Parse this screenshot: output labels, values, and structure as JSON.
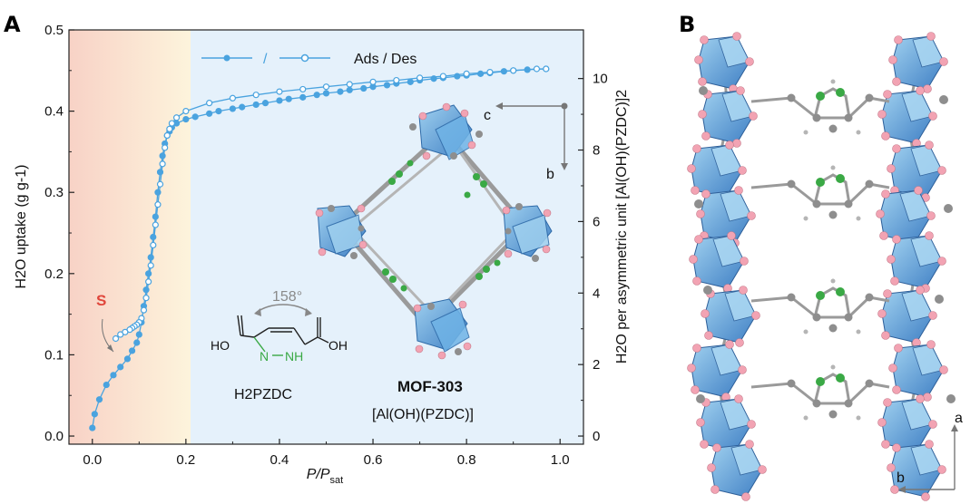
{
  "panels": {
    "a": "A",
    "b": "B"
  },
  "chart_data": {
    "type": "line",
    "xlabel_main": "P/P",
    "xlabel_sub": "sat",
    "ylabel_left": "H2O uptake (g g-1)",
    "ylabel_right": "H2O per asymmetric unit [Al(OH)(PZDC)]2",
    "xlim": [
      -0.05,
      1.05
    ],
    "ylim": [
      -0.01,
      0.5
    ],
    "y2lim": [
      -0.227,
      11.36
    ],
    "xticks": [
      "0.0",
      "0.2",
      "0.4",
      "0.6",
      "0.8",
      "1.0"
    ],
    "xtick_values": [
      0.0,
      0.2,
      0.4,
      0.6,
      0.8,
      1.0
    ],
    "yticks": [
      "0.0",
      "0.1",
      "0.2",
      "0.3",
      "0.4",
      "0.5"
    ],
    "ytick_values": [
      0.0,
      0.1,
      0.2,
      0.3,
      0.4,
      0.5
    ],
    "y2ticks": [
      "0",
      "2",
      "4",
      "6",
      "8",
      "10"
    ],
    "y2tick_values": [
      0,
      2,
      4,
      6,
      8,
      10
    ],
    "legend": {
      "slash": "/",
      "text": "Ads / Des",
      "placement": "top-center"
    },
    "regions": [
      {
        "x0": -0.05,
        "x1": 0.21,
        "color": "#f9d7c8",
        "to_color": "#fdf3dc"
      },
      {
        "x0": 0.21,
        "x1": 1.05,
        "color": "#e5f1fb"
      }
    ],
    "series": [
      {
        "marker": "filled",
        "color": "#4aa3df",
        "x": [
          0.0,
          0.005,
          0.015,
          0.03,
          0.045,
          0.06,
          0.075,
          0.085,
          0.095,
          0.1,
          0.105,
          0.11,
          0.115,
          0.12,
          0.125,
          0.13,
          0.135,
          0.14,
          0.145,
          0.15,
          0.155,
          0.16,
          0.165,
          0.17,
          0.18,
          0.2,
          0.22,
          0.25,
          0.27,
          0.3,
          0.32,
          0.35,
          0.37,
          0.4,
          0.42,
          0.45,
          0.48,
          0.5,
          0.53,
          0.55,
          0.58,
          0.6,
          0.63,
          0.65,
          0.68,
          0.7,
          0.73,
          0.75,
          0.78,
          0.8,
          0.83,
          0.85,
          0.88,
          0.9,
          0.93,
          0.97
        ],
        "y": [
          0.01,
          0.027,
          0.045,
          0.063,
          0.075,
          0.085,
          0.095,
          0.105,
          0.115,
          0.125,
          0.14,
          0.16,
          0.18,
          0.2,
          0.22,
          0.245,
          0.27,
          0.3,
          0.325,
          0.345,
          0.36,
          0.37,
          0.375,
          0.38,
          0.385,
          0.39,
          0.393,
          0.397,
          0.4,
          0.403,
          0.405,
          0.408,
          0.41,
          0.413,
          0.415,
          0.417,
          0.42,
          0.422,
          0.424,
          0.426,
          0.428,
          0.43,
          0.432,
          0.434,
          0.436,
          0.438,
          0.44,
          0.441,
          0.443,
          0.444,
          0.446,
          0.447,
          0.449,
          0.45,
          0.451,
          0.452
        ]
      },
      {
        "marker": "open",
        "color": "#4aa3df",
        "x": [
          0.97,
          0.95,
          0.9,
          0.85,
          0.8,
          0.75,
          0.7,
          0.65,
          0.6,
          0.55,
          0.5,
          0.45,
          0.4,
          0.35,
          0.3,
          0.25,
          0.2,
          0.18,
          0.17,
          0.165,
          0.16,
          0.155,
          0.15,
          0.145,
          0.14,
          0.135,
          0.13,
          0.125,
          0.12,
          0.115,
          0.11,
          0.105,
          0.1,
          0.095,
          0.09,
          0.085,
          0.08,
          0.07,
          0.06,
          0.05
        ],
        "y": [
          0.452,
          0.452,
          0.45,
          0.448,
          0.446,
          0.443,
          0.441,
          0.438,
          0.436,
          0.433,
          0.43,
          0.427,
          0.424,
          0.42,
          0.416,
          0.41,
          0.4,
          0.392,
          0.385,
          0.378,
          0.37,
          0.355,
          0.335,
          0.31,
          0.285,
          0.26,
          0.235,
          0.21,
          0.19,
          0.17,
          0.155,
          0.145,
          0.14,
          0.137,
          0.135,
          0.133,
          0.131,
          0.128,
          0.125,
          0.12
        ]
      }
    ],
    "annotations": [
      {
        "text": "S",
        "color": "#e0463b"
      },
      {
        "text": "158°"
      },
      {
        "text": "HO"
      },
      {
        "text": "OH"
      },
      {
        "text": "N"
      },
      {
        "text": "NH"
      },
      {
        "text": "H2PZDC"
      },
      {
        "text": "MOF-303"
      },
      {
        "text": "[Al(OH)(PZDC)]"
      },
      {
        "text": "c"
      },
      {
        "text": "b"
      }
    ]
  },
  "panel_b": {
    "axis_a": "a",
    "axis_b": "b"
  },
  "colors": {
    "series": "#4aa3df",
    "octahedron": "#4a8fd0",
    "oxygen": "#f2a3b3",
    "carbon": "#8a8a8a",
    "nitrogen": "#3aa945"
  }
}
